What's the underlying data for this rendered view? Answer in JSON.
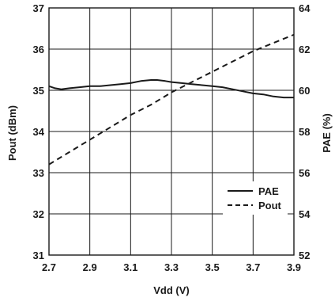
{
  "chart_data": {
    "type": "line",
    "title": "",
    "xlabel": "Vdd (V)",
    "ylabel_left": "Pout (dBm)",
    "ylabel_right": "PAE (%)",
    "xlim": [
      2.7,
      3.9
    ],
    "ylim_left": [
      31,
      37
    ],
    "ylim_right": [
      52,
      64
    ],
    "x_ticks": [
      "2.7",
      "2.9",
      "3.1",
      "3.3",
      "3.5",
      "3.7",
      "3.9"
    ],
    "y_left_ticks": [
      "31",
      "32",
      "33",
      "34",
      "35",
      "36",
      "37"
    ],
    "y_right_ticks": [
      "52",
      "54",
      "56",
      "58",
      "60",
      "62",
      "64"
    ],
    "grid": true,
    "legend_position": "bottom-right",
    "series": [
      {
        "name": "PAE",
        "axis": "right",
        "style": "solid",
        "color": "#1a1a1a",
        "x": [
          2.7,
          2.73,
          2.76,
          2.8,
          2.85,
          2.9,
          2.95,
          3.0,
          3.05,
          3.1,
          3.15,
          3.2,
          3.23,
          3.27,
          3.3,
          3.35,
          3.4,
          3.45,
          3.5,
          3.55,
          3.6,
          3.65,
          3.7,
          3.75,
          3.8,
          3.85,
          3.9
        ],
        "values": [
          60.2,
          60.1,
          60.05,
          60.1,
          60.15,
          60.2,
          60.2,
          60.25,
          60.3,
          60.35,
          60.45,
          60.5,
          60.5,
          60.45,
          60.4,
          60.35,
          60.3,
          60.25,
          60.2,
          60.15,
          60.05,
          59.95,
          59.85,
          59.8,
          59.7,
          59.65,
          59.65
        ]
      },
      {
        "name": "Pout",
        "axis": "left",
        "style": "dashed",
        "color": "#1a1a1a",
        "x": [
          2.7,
          2.8,
          2.9,
          3.0,
          3.1,
          3.2,
          3.3,
          3.4,
          3.5,
          3.6,
          3.7,
          3.8,
          3.9
        ],
        "values": [
          33.2,
          33.5,
          33.8,
          34.1,
          34.4,
          34.65,
          34.95,
          35.2,
          35.45,
          35.7,
          35.95,
          36.15,
          36.35
        ]
      }
    ]
  }
}
